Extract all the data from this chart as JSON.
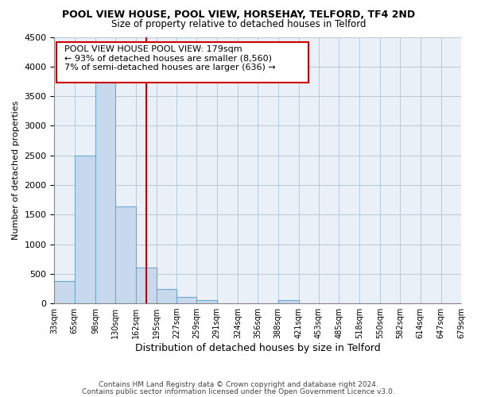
{
  "title": "POOL VIEW HOUSE, POOL VIEW, HORSEHAY, TELFORD, TF4 2ND",
  "subtitle": "Size of property relative to detached houses in Telford",
  "xlabel": "Distribution of detached houses by size in Telford",
  "ylabel": "Number of detached properties",
  "bar_edges": [
    33,
    65,
    98,
    130,
    162,
    195,
    227,
    259,
    291,
    324,
    356,
    388,
    421,
    453,
    485,
    518,
    550,
    582,
    614,
    647,
    679
  ],
  "bar_heights": [
    370,
    2500,
    3750,
    1640,
    600,
    240,
    110,
    55,
    0,
    0,
    0,
    55,
    0,
    0,
    0,
    0,
    0,
    0,
    0,
    0
  ],
  "bar_color": "#c8d9ed",
  "bar_edgecolor": "#6ea6d0",
  "vline_x": 179,
  "vline_color": "#cc0000",
  "ylim": [
    0,
    4500
  ],
  "yticks": [
    0,
    500,
    1000,
    1500,
    2000,
    2500,
    3000,
    3500,
    4000,
    4500
  ],
  "annotation_line1": "POOL VIEW HOUSE POOL VIEW: 179sqm",
  "annotation_line2": "← 93% of detached houses are smaller (8,560)",
  "annotation_line3": "7% of semi-detached houses are larger (636) →",
  "annotation_border_color": "#cc0000",
  "tick_labels": [
    "33sqm",
    "65sqm",
    "98sqm",
    "130sqm",
    "162sqm",
    "195sqm",
    "227sqm",
    "259sqm",
    "291sqm",
    "324sqm",
    "356sqm",
    "388sqm",
    "421sqm",
    "453sqm",
    "485sqm",
    "518sqm",
    "550sqm",
    "582sqm",
    "614sqm",
    "647sqm",
    "679sqm"
  ],
  "footnote1": "Contains HM Land Registry data © Crown copyright and database right 2024.",
  "footnote2": "Contains public sector information licensed under the Open Government Licence v3.0.",
  "background_color": "#ffffff",
  "axes_bg_color": "#eaf0f8",
  "grid_color": "#b8c8d8"
}
